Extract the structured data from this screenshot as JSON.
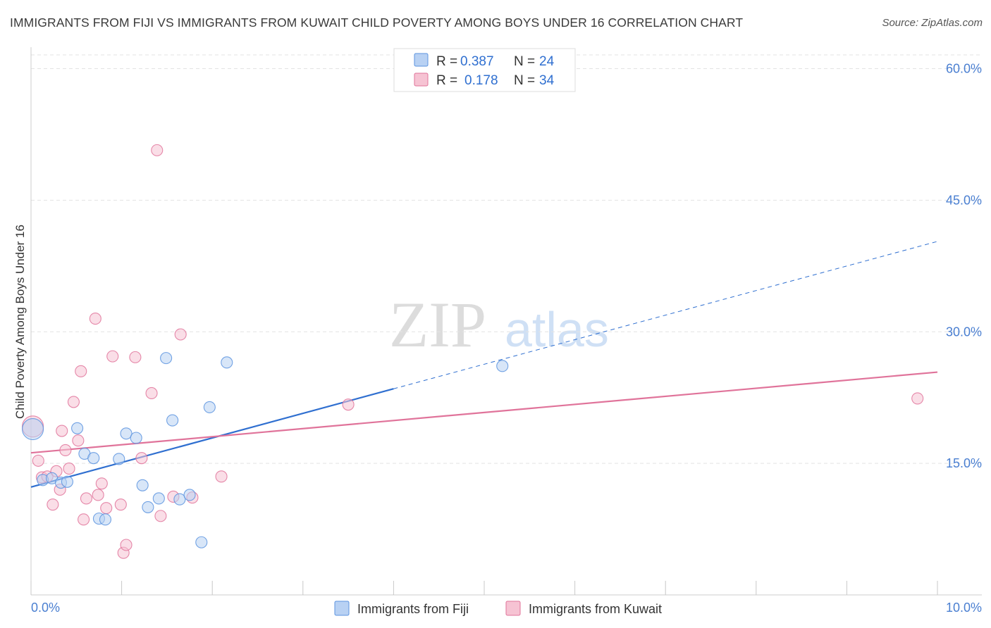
{
  "title": "IMMIGRANTS FROM FIJI VS IMMIGRANTS FROM KUWAIT CHILD POVERTY AMONG BOYS UNDER 16 CORRELATION CHART",
  "source": "Source: ZipAtlas.com",
  "watermark": {
    "zip": "ZIP",
    "atlas": "atlas"
  },
  "colors": {
    "fiji": "#5b93df",
    "fiji_fill": "#b8d1f3",
    "kuwait": "#e0739a",
    "kuwait_fill": "#f6c3d3",
    "fiji_line": "#2f6fd0",
    "kuwait_line": "#e0739a",
    "axis_label": "#4a7fd1"
  },
  "legend": {
    "entries": [
      {
        "r_label": "R =",
        "r_value": "0.387",
        "n_label": "N =",
        "n_value": "24"
      },
      {
        "r_label": "R =",
        "r_value": "0.178",
        "n_label": "N =",
        "n_value": "34"
      }
    ]
  },
  "chart_data": {
    "type": "scatter",
    "title": "IMMIGRANTS FROM FIJI VS IMMIGRANTS FROM KUWAIT CHILD POVERTY AMONG BOYS UNDER 16 CORRELATION CHART",
    "xlabel": "",
    "ylabel": "Child Poverty Among Boys Under 16",
    "xlim": [
      0,
      10
    ],
    "ylim": [
      0,
      60
    ],
    "x_tick_labels": [
      "0.0%",
      "10.0%"
    ],
    "y_ticks": [
      15,
      30,
      45,
      60
    ],
    "y_tick_labels": [
      "15.0%",
      "30.0%",
      "45.0%",
      "60.0%"
    ],
    "series": [
      {
        "name": "Immigrants from Fiji",
        "points": [
          [
            0.02,
            18.9
          ],
          [
            0.13,
            13.1
          ],
          [
            0.23,
            13.3
          ],
          [
            0.33,
            12.8
          ],
          [
            0.4,
            12.9
          ],
          [
            0.51,
            19.0
          ],
          [
            0.59,
            16.1
          ],
          [
            0.69,
            15.6
          ],
          [
            0.75,
            8.7
          ],
          [
            0.82,
            8.6
          ],
          [
            0.97,
            15.5
          ],
          [
            1.05,
            18.4
          ],
          [
            1.16,
            17.9
          ],
          [
            1.23,
            12.5
          ],
          [
            1.29,
            10.0
          ],
          [
            1.41,
            11.0
          ],
          [
            1.49,
            27.0
          ],
          [
            1.56,
            19.9
          ],
          [
            1.64,
            10.9
          ],
          [
            1.75,
            11.4
          ],
          [
            1.88,
            6.0
          ],
          [
            1.97,
            21.4
          ],
          [
            2.16,
            26.5
          ],
          [
            5.2,
            26.1
          ]
        ],
        "trend": {
          "x0": 0,
          "y0": 12.3,
          "x1": 4.0,
          "y1": 23.5,
          "dash_x1": 10.0,
          "dash_y1": 40.3
        }
      },
      {
        "name": "Immigrants from Kuwait",
        "points": [
          [
            0.02,
            19.2
          ],
          [
            0.08,
            15.3
          ],
          [
            0.12,
            13.4
          ],
          [
            0.18,
            13.5
          ],
          [
            0.24,
            10.3
          ],
          [
            0.28,
            14.1
          ],
          [
            0.32,
            12.0
          ],
          [
            0.34,
            18.7
          ],
          [
            0.38,
            16.5
          ],
          [
            0.42,
            14.4
          ],
          [
            0.47,
            22.0
          ],
          [
            0.52,
            17.6
          ],
          [
            0.55,
            25.5
          ],
          [
            0.58,
            8.6
          ],
          [
            0.61,
            11.0
          ],
          [
            0.71,
            31.5
          ],
          [
            0.74,
            11.4
          ],
          [
            0.78,
            12.7
          ],
          [
            0.83,
            9.9
          ],
          [
            0.9,
            27.2
          ],
          [
            0.99,
            10.3
          ],
          [
            1.02,
            4.8
          ],
          [
            1.05,
            5.7
          ],
          [
            1.15,
            27.1
          ],
          [
            1.22,
            15.6
          ],
          [
            1.33,
            23.0
          ],
          [
            1.39,
            50.7
          ],
          [
            1.43,
            9.0
          ],
          [
            1.57,
            11.2
          ],
          [
            1.65,
            29.7
          ],
          [
            1.78,
            11.1
          ],
          [
            2.1,
            13.5
          ],
          [
            3.5,
            21.7
          ],
          [
            9.78,
            22.4
          ]
        ],
        "trend": {
          "x0": 0,
          "y0": 16.2,
          "x1": 10.0,
          "y1": 25.4
        }
      }
    ],
    "legend_position": "top-center",
    "grid": true
  }
}
